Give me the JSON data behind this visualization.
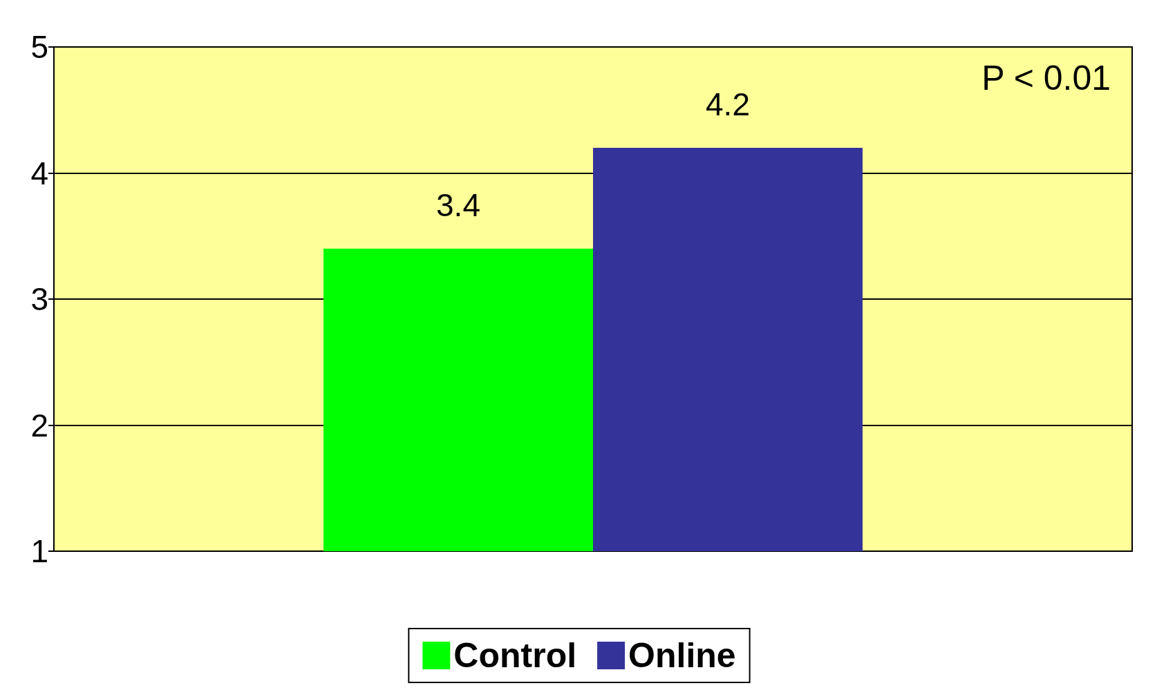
{
  "chart_data": {
    "type": "bar",
    "categories": [
      null
    ],
    "series": [
      {
        "name": "Control",
        "color": "#00ff00",
        "values": [
          3.4
        ]
      },
      {
        "name": "Online",
        "color": "#333399",
        "values": [
          4.2
        ]
      }
    ],
    "ylim": [
      1,
      5
    ],
    "yticks": [
      1,
      2,
      3,
      4,
      5
    ],
    "grid": "y",
    "legend": "bottom",
    "data_labels": true,
    "annotations": [
      "P < 0.01"
    ]
  }
}
